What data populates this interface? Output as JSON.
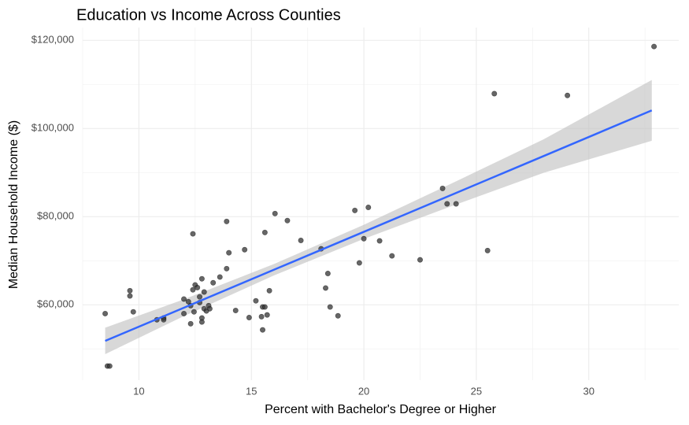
{
  "chart_data": {
    "type": "scatter",
    "title": "Education vs Income Across Counties",
    "x_label": "Percent with Bachelor's Degree or Higher",
    "y_label": "Median Household Income ($)",
    "xlim": [
      7.5,
      34
    ],
    "ylim": [
      42900,
      122900
    ],
    "xticks": [
      10,
      15,
      20,
      25,
      30
    ],
    "yticks": [
      {
        "value": 60000,
        "label": "$60,000"
      },
      {
        "value": 80000,
        "label": "$80,000"
      },
      {
        "value": 100000,
        "label": "$100,000"
      },
      {
        "value": 120000,
        "label": "$120,000"
      }
    ],
    "minor_xticks": [
      7.5,
      12.5,
      17.5,
      22.5,
      27.5,
      32.5
    ],
    "minor_yticks": [
      50000,
      70000,
      90000,
      110000
    ],
    "grid": true,
    "point_color": "#333333",
    "point_opacity": 0.75,
    "x": [
      8.5,
      8.6,
      8.7,
      9.6,
      9.6,
      9.75,
      10.8,
      11.1,
      11.1,
      12.0,
      12.0,
      12.2,
      12.3,
      12.3,
      12.4,
      12.4,
      12.45,
      12.5,
      12.6,
      12.7,
      12.7,
      12.8,
      12.8,
      12.8,
      12.9,
      12.9,
      13.0,
      13.1,
      13.15,
      13.3,
      13.6,
      13.9,
      13.9,
      14.0,
      14.3,
      14.7,
      14.9,
      15.2,
      15.45,
      15.5,
      15.5,
      15.6,
      15.6,
      15.7,
      15.8,
      16.05,
      16.6,
      17.2,
      18.1,
      18.3,
      18.4,
      18.5,
      18.85,
      19.6,
      19.8,
      20.0,
      20.2,
      20.7,
      21.25,
      22.5,
      23.5,
      23.7,
      24.1,
      25.5,
      25.8,
      29.05,
      32.9
    ],
    "values": [
      58000,
      46100,
      46100,
      63200,
      62000,
      58400,
      56600,
      57000,
      56600,
      61300,
      58000,
      60700,
      59800,
      55700,
      76100,
      63400,
      58400,
      64500,
      63900,
      60500,
      61800,
      57000,
      65900,
      56100,
      62900,
      59100,
      58600,
      59800,
      59100,
      65000,
      66300,
      68200,
      78900,
      71800,
      58700,
      72500,
      57100,
      60900,
      57300,
      59500,
      54300,
      76400,
      59500,
      57700,
      63200,
      80700,
      79100,
      74600,
      72700,
      63800,
      67100,
      59500,
      57500,
      81400,
      69500,
      75000,
      82100,
      74500,
      71100,
      70200,
      86400,
      82900,
      82900,
      72300,
      107900,
      107500,
      118600
    ],
    "fit": {
      "color": "#3366ff",
      "band_color": "#bebebe",
      "x": [
        8.5,
        12,
        16,
        20,
        24,
        28,
        32.8
      ],
      "y": [
        51800,
        59330,
        67940,
        76550,
        85160,
        93760,
        104100
      ],
      "lower": [
        48800,
        57430,
        66640,
        74950,
        82560,
        89960,
        97200
      ],
      "upper": [
        54800,
        61230,
        69240,
        78150,
        87760,
        97560,
        111000
      ]
    }
  }
}
